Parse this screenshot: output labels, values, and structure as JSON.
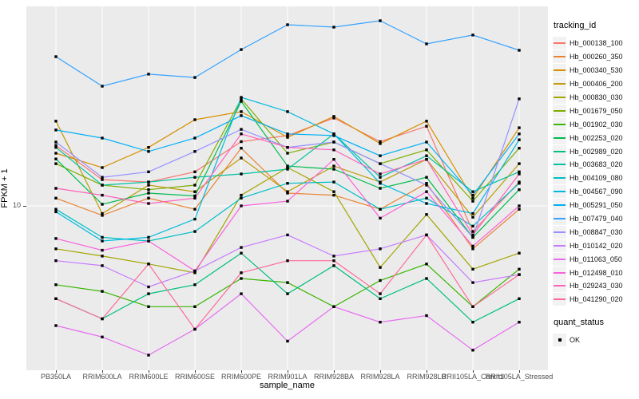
{
  "figure": {
    "panel_background": "#EBEBEB",
    "grid_color": "#FFFFFF",
    "point_color": "#000000",
    "axis_text_color": "#4D4D4D"
  },
  "axes": {
    "x_title": "sample_name",
    "y_title": "FPKM + 1",
    "y_tick_label": "10"
  },
  "legend": {
    "tracking_title": "tracking_id",
    "quant_title": "quant_status",
    "quant_ok_label": "OK"
  },
  "chart_data": {
    "type": "line",
    "xlabel": "sample_name",
    "ylabel": "FPKM + 1",
    "y_scale": "log10",
    "y_tick_values": [
      10
    ],
    "grid": "major-white-on-gray",
    "legend_position": "right",
    "point_marker": "black-square",
    "x": [
      "PB350LA",
      "RRIM600LA",
      "RRIM600LE",
      "RRIM600SE",
      "RRIM600PE",
      "RRIM901LA",
      "RRIM928BA",
      "RRIM928LA",
      "RRIM928LB",
      "RRII105LA_Control",
      "RRII105LA_Stressed"
    ],
    "series": [
      {
        "name": "Hb_000138_100",
        "color": "#F8766D",
        "values": [
          21,
          13.8,
          13.4,
          15.2,
          22,
          23.7,
          29.4,
          22,
          26.6,
          7.3,
          13.4
        ]
      },
      {
        "name": "Hb_000260_350",
        "color": "#EA8331",
        "values": [
          11,
          8.9,
          11,
          9.6,
          20.3,
          11.7,
          11.4,
          9.6,
          13.2,
          5.9,
          9.6
        ]
      },
      {
        "name": "Hb_000340_530",
        "color": "#D89000",
        "values": [
          19.1,
          16,
          20.5,
          28.8,
          31.8,
          23.2,
          30,
          21.5,
          28.3,
          11,
          26.1
        ]
      },
      {
        "name": "Hb_000406_200",
        "color": "#C09B06",
        "values": [
          28.3,
          9.1,
          12.9,
          11.9,
          18,
          11.9,
          16.3,
          13.4,
          17.7,
          8.7,
          16.8
        ]
      },
      {
        "name": "Hb_000830_030",
        "color": "#A3A500",
        "values": [
          5.9,
          5.4,
          4.9,
          4.4,
          11.4,
          16,
          11.9,
          4.7,
          9,
          4.6,
          5.6
        ]
      },
      {
        "name": "Hb_001679_050",
        "color": "#7CAE00",
        "values": [
          16.8,
          12.9,
          12.2,
          12.9,
          37.2,
          19.1,
          21.9,
          16.8,
          19.9,
          10.6,
          20.3
        ]
      },
      {
        "name": "Hb_001902_030",
        "color": "#39B600",
        "values": [
          3.8,
          3.5,
          2.9,
          2.9,
          4.1,
          3.9,
          2.9,
          4,
          4.9,
          2.9,
          4.6
        ]
      },
      {
        "name": "Hb_002253_020",
        "color": "#00BB4E",
        "values": [
          17.8,
          10.2,
          11.7,
          11.3,
          36.1,
          16.3,
          15.7,
          12.4,
          14.2,
          6.8,
          12.2
        ]
      },
      {
        "name": "Hb_002989_020",
        "color": "#00BF7D",
        "values": [
          3.2,
          2.5,
          3.4,
          3.8,
          5.6,
          3.4,
          4.8,
          3.2,
          4.1,
          2.4,
          3.2
        ]
      },
      {
        "name": "Hb_003683_020",
        "color": "#00C1A3",
        "values": [
          20.5,
          12.9,
          13.4,
          14.2,
          14.8,
          15.7,
          24.2,
          14.2,
          18.5,
          11.9,
          15.2
        ]
      },
      {
        "name": "Hb_004109_080",
        "color": "#00BFC4",
        "values": [
          9.6,
          6.8,
          6.5,
          7.3,
          11,
          13.2,
          13.4,
          9.6,
          11,
          7.8,
          13.2
        ]
      },
      {
        "name": "Hb_004567_090",
        "color": "#00BAE0",
        "values": [
          9.3,
          6.5,
          6.8,
          8.5,
          37.9,
          31.8,
          24.2,
          13.2,
          10.3,
          9.1,
          22.5
        ]
      },
      {
        "name": "Hb_005291_050",
        "color": "#00B0F6",
        "values": [
          25.4,
          23,
          19.5,
          23,
          30.3,
          24.2,
          23.7,
          18.5,
          21.9,
          11.4,
          24.2
        ]
      },
      {
        "name": "Hb_007479_040",
        "color": "#35A2FF",
        "values": [
          62.5,
          43.5,
          50.4,
          48.4,
          68.2,
          92.5,
          89.8,
          97.1,
          73.1,
          81.5,
          67.6
        ]
      },
      {
        "name": "Hb_008847_030",
        "color": "#9590FF",
        "values": [
          21.9,
          14.2,
          15.2,
          19.5,
          25.6,
          20.5,
          21.9,
          16.8,
          12.9,
          6.8,
          37.2
        ]
      },
      {
        "name": "Hb_010142_020",
        "color": "#C77CFF",
        "values": [
          5.1,
          4.8,
          3.7,
          4.5,
          6,
          7,
          5.4,
          5.9,
          7,
          3.9,
          4.3
        ]
      },
      {
        "name": "Hb_011063_050",
        "color": "#E76BF3",
        "values": [
          2.3,
          2,
          1.6,
          2.2,
          3.4,
          1.9,
          2.9,
          2.4,
          2.6,
          1.7,
          2.4
        ]
      },
      {
        "name": "Hb_012498_010",
        "color": "#FA62DB",
        "values": [
          6.7,
          5.8,
          6.5,
          4.5,
          10,
          10.6,
          17.7,
          8.6,
          11.9,
          6.1,
          10
        ]
      },
      {
        "name": "Hb_029243_030",
        "color": "#FF62BC",
        "values": [
          12.4,
          11.4,
          10.3,
          11,
          24.2,
          20.5,
          19.9,
          14.8,
          17.7,
          7,
          14.8
        ]
      },
      {
        "name": "Hb_041290_020",
        "color": "#FF6A98",
        "values": [
          3.2,
          2.5,
          4.9,
          2.2,
          4.4,
          5.1,
          5.1,
          3.4,
          7,
          2.9,
          4.3
        ]
      }
    ],
    "quant_status_values": [
      "OK"
    ]
  }
}
